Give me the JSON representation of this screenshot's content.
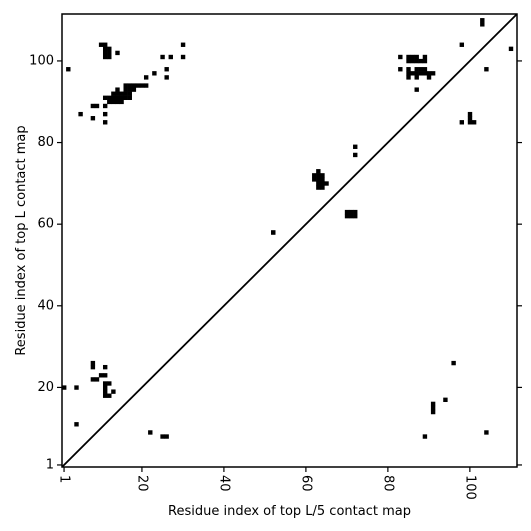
{
  "chart_data": {
    "type": "heatmap",
    "title": "",
    "xlabel": "Residue index of top L/5 contact map",
    "ylabel": "Residue index of top L contact map",
    "xlim": [
      0.5,
      111.5
    ],
    "ylim": [
      0.5,
      111.5
    ],
    "x_ticks": [
      1,
      20,
      40,
      60,
      80,
      100
    ],
    "y_ticks": [
      1,
      20,
      40,
      60,
      80,
      100
    ],
    "grid": false,
    "diagonal": true,
    "mark_color": "#000000",
    "upper_contacts": [
      [
        2,
        98
      ],
      [
        5,
        87
      ],
      [
        8,
        86
      ],
      [
        8,
        89
      ],
      [
        9,
        89
      ],
      [
        10,
        104
      ],
      [
        11,
        104
      ],
      [
        11,
        101
      ],
      [
        11,
        102
      ],
      [
        11,
        103
      ],
      [
        12,
        101
      ],
      [
        12,
        102
      ],
      [
        12,
        103
      ],
      [
        14,
        102
      ],
      [
        11,
        91
      ],
      [
        11,
        89
      ],
      [
        11,
        87
      ],
      [
        11,
        85
      ],
      [
        12,
        91
      ],
      [
        12,
        90
      ],
      [
        13,
        92
      ],
      [
        13,
        91
      ],
      [
        13,
        90
      ],
      [
        14,
        93
      ],
      [
        14,
        92
      ],
      [
        14,
        91
      ],
      [
        14,
        90
      ],
      [
        15,
        92
      ],
      [
        15,
        91
      ],
      [
        15,
        90
      ],
      [
        16,
        94
      ],
      [
        16,
        93
      ],
      [
        16,
        92
      ],
      [
        16,
        91
      ],
      [
        17,
        94
      ],
      [
        17,
        93
      ],
      [
        17,
        92
      ],
      [
        17,
        91
      ],
      [
        18,
        94
      ],
      [
        18,
        93
      ],
      [
        19,
        94
      ],
      [
        20,
        94
      ],
      [
        21,
        96
      ],
      [
        21,
        94
      ],
      [
        23,
        97
      ],
      [
        25,
        101
      ],
      [
        26,
        98
      ],
      [
        26,
        96
      ],
      [
        27,
        101
      ],
      [
        30,
        104
      ],
      [
        30,
        101
      ],
      [
        52,
        58
      ],
      [
        62,
        71
      ],
      [
        62,
        72
      ],
      [
        63,
        69
      ],
      [
        63,
        70
      ],
      [
        63,
        71
      ],
      [
        63,
        72
      ],
      [
        63,
        73
      ],
      [
        64,
        69
      ],
      [
        64,
        70
      ],
      [
        64,
        71
      ],
      [
        64,
        72
      ],
      [
        65,
        70
      ],
      [
        70,
        62
      ],
      [
        70,
        63
      ],
      [
        71,
        62
      ],
      [
        71,
        63
      ],
      [
        72,
        62
      ],
      [
        72,
        63
      ],
      [
        72,
        77
      ],
      [
        72,
        79
      ],
      [
        83,
        101
      ],
      [
        83,
        98
      ],
      [
        85,
        101
      ],
      [
        85,
        100
      ],
      [
        85,
        98
      ],
      [
        85,
        97
      ],
      [
        85,
        96
      ],
      [
        86,
        101
      ],
      [
        86,
        100
      ],
      [
        86,
        97
      ],
      [
        87,
        101
      ],
      [
        87,
        100
      ],
      [
        87,
        98
      ],
      [
        87,
        97
      ],
      [
        87,
        96
      ],
      [
        87,
        93
      ],
      [
        88,
        100
      ],
      [
        88,
        98
      ],
      [
        88,
        97
      ],
      [
        89,
        101
      ],
      [
        89,
        100
      ],
      [
        89,
        98
      ],
      [
        89,
        97
      ],
      [
        90,
        97
      ],
      [
        90,
        96
      ],
      [
        91,
        97
      ],
      [
        98,
        104
      ],
      [
        98,
        85
      ],
      [
        100,
        87
      ],
      [
        100,
        86
      ],
      [
        100,
        85
      ],
      [
        101,
        85
      ],
      [
        103,
        110
      ],
      [
        103,
        109
      ],
      [
        104,
        98
      ],
      [
        110,
        103
      ]
    ],
    "lower_contacts": [
      [
        1,
        20
      ],
      [
        4,
        20
      ],
      [
        4,
        11
      ],
      [
        8,
        26
      ],
      [
        8,
        25
      ],
      [
        8,
        22
      ],
      [
        9,
        22
      ],
      [
        10,
        23
      ],
      [
        11,
        25
      ],
      [
        11,
        23
      ],
      [
        11,
        21
      ],
      [
        11,
        20
      ],
      [
        11,
        19
      ],
      [
        11,
        18
      ],
      [
        12,
        21
      ],
      [
        12,
        18
      ],
      [
        13,
        19
      ],
      [
        22,
        9
      ],
      [
        25,
        8
      ],
      [
        26,
        8
      ],
      [
        52,
        58
      ],
      [
        89,
        8
      ],
      [
        91,
        16
      ],
      [
        91,
        15
      ],
      [
        91,
        14
      ],
      [
        94,
        17
      ],
      [
        96,
        26
      ],
      [
        104,
        9
      ]
    ]
  }
}
